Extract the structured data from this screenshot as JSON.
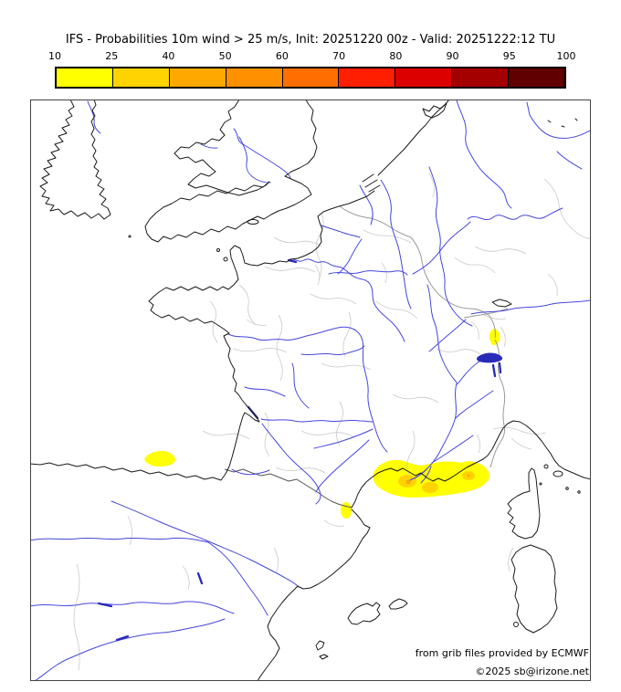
{
  "header": {
    "title": "IFS - Probabilities 10m wind > 25 m/s, Init: 20251220 00z - Valid: 20251222:12 TU"
  },
  "legend": {
    "tick_labels": [
      "10",
      "25",
      "40",
      "50",
      "60",
      "70",
      "80",
      "90",
      "95",
      "100"
    ],
    "segment_colors": [
      "#ffff00",
      "#ffd300",
      "#ffa800",
      "#ff9000",
      "#ff6e00",
      "#ff1f00",
      "#dd0000",
      "#a50000",
      "#600000"
    ]
  },
  "map": {
    "colors": {
      "coastline": "#1a1a1a",
      "river": "#4646dc",
      "lake": "#2a2ab8",
      "admin_boundary": "#c9c9c9",
      "country_border": "#999999",
      "pyrenees_border": "#555555",
      "frame": "#444444",
      "prob_10_25": "#ffff00",
      "prob_25_40": "#ffd300",
      "prob_40_50": "#ffa800"
    },
    "highlights": [
      {
        "area": "gulf-of-lion-provence-coast",
        "levels": "10-40%"
      },
      {
        "area": "central-pyrenees",
        "levels": "10-25%"
      },
      {
        "area": "roussillon-coast",
        "levels": "10-25%"
      },
      {
        "area": "lake-geneva-area",
        "levels": "10-25%"
      }
    ]
  },
  "credits": {
    "line1": "from grib files provided by ECMWF",
    "line2": "©2025 sb@irizone.net"
  }
}
